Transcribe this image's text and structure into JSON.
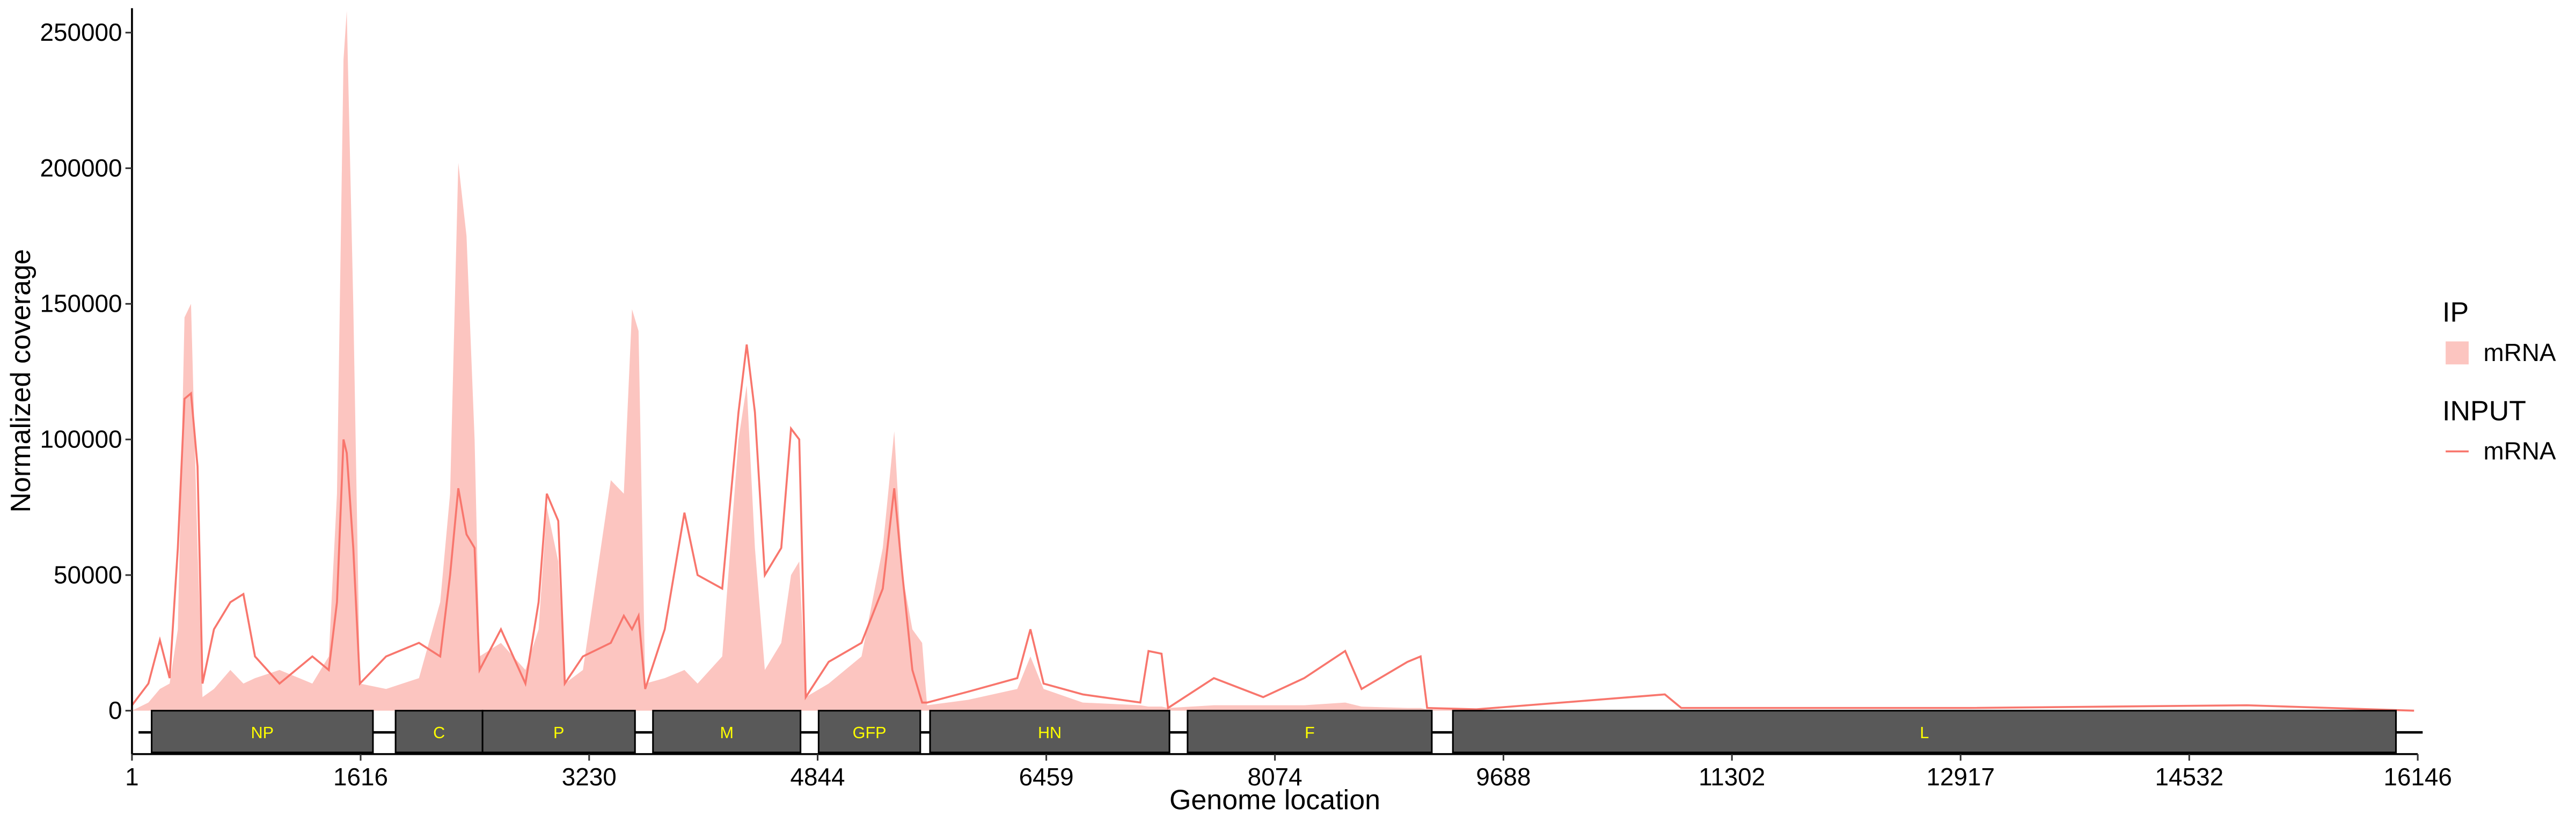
{
  "chart_data": {
    "type": "area",
    "x_label": "Genome location",
    "y_label": "Normalized coverage",
    "xlim": [
      1,
      16146
    ],
    "xticks": [
      1,
      1616,
      3230,
      4844,
      6459,
      8074,
      9688,
      11302,
      12917,
      14532,
      16146
    ],
    "ylim": [
      -16000,
      259000
    ],
    "yticks": [
      0,
      50000,
      100000,
      150000,
      200000,
      250000
    ],
    "x": [
      1,
      117,
      198,
      267,
      325,
      372,
      418,
      464,
      499,
      580,
      696,
      788,
      870,
      1043,
      1275,
      1391,
      1449,
      1495,
      1518,
      1564,
      1611,
      1796,
      2028,
      2178,
      2248,
      2306,
      2364,
      2421,
      2456,
      2607,
      2780,
      2873,
      2931,
      3012,
      3058,
      3186,
      3383,
      3475,
      3533,
      3579,
      3626,
      3764,
      3903,
      3996,
      4170,
      4285,
      4343,
      4401,
      4471,
      4587,
      4656,
      4714,
      4760,
      4922,
      5154,
      5304,
      5385,
      5443,
      5513,
      5582,
      5617,
      5907,
      6254,
      6347,
      6440,
      6717,
      7123,
      7181,
      7273,
      7319,
      7643,
      7991,
      8281,
      8570,
      8686,
      9010,
      9103,
      9149,
      9497,
      10828,
      10944,
      12970,
      14939,
      16120
    ],
    "series": [
      {
        "group": "IP",
        "name": "mRNA",
        "kind": "area",
        "color": "#fcc5c0",
        "values": [
          0,
          3000,
          8000,
          10000,
          30000,
          145000,
          150000,
          60000,
          5000,
          8000,
          15000,
          10000,
          12000,
          15000,
          10000,
          20000,
          80000,
          240000,
          258000,
          150000,
          10000,
          8000,
          12000,
          40000,
          80000,
          202000,
          175000,
          100000,
          20000,
          25000,
          15000,
          30000,
          75000,
          55000,
          10000,
          15000,
          85000,
          80000,
          148000,
          140000,
          10000,
          12000,
          15000,
          10000,
          20000,
          100000,
          120000,
          60000,
          15000,
          25000,
          50000,
          55000,
          5000,
          10000,
          20000,
          60000,
          103000,
          50000,
          30000,
          25000,
          2000,
          4000,
          8000,
          20000,
          8000,
          3000,
          2000,
          1500,
          1500,
          1000,
          2000,
          2000,
          2000,
          3000,
          1500,
          1000,
          1000,
          500,
          300,
          300,
          300,
          300,
          300,
          0
        ]
      },
      {
        "group": "INPUT",
        "name": "mRNA",
        "kind": "line",
        "color": "#f8766d",
        "values": [
          2000,
          10000,
          26000,
          12000,
          60000,
          115000,
          117000,
          90000,
          10000,
          30000,
          40000,
          43000,
          20000,
          10000,
          20000,
          15000,
          40000,
          100000,
          95000,
          60000,
          10000,
          20000,
          25000,
          20000,
          50000,
          82000,
          65000,
          60000,
          15000,
          30000,
          10000,
          40000,
          80000,
          70000,
          10000,
          20000,
          25000,
          35000,
          30000,
          35000,
          8000,
          30000,
          73000,
          50000,
          45000,
          110000,
          135000,
          110000,
          50000,
          60000,
          104000,
          100000,
          5000,
          18000,
          25000,
          45000,
          82000,
          50000,
          15000,
          3000,
          3000,
          7000,
          12000,
          30000,
          10000,
          6000,
          3000,
          22000,
          21000,
          1000,
          12000,
          5000,
          12000,
          22000,
          8000,
          18000,
          20000,
          1000,
          500,
          6000,
          1000,
          1000,
          2000,
          0
        ]
      }
    ],
    "genes": [
      {
        "name": "NP",
        "start": 140,
        "end": 1703
      },
      {
        "name": "C",
        "start": 1863,
        "end": 2477
      },
      {
        "name": "P",
        "start": 2477,
        "end": 3554
      },
      {
        "name": "M",
        "start": 3681,
        "end": 4723
      },
      {
        "name": "GFP",
        "start": 4851,
        "end": 5569
      },
      {
        "name": "HN",
        "start": 5638,
        "end": 7329
      },
      {
        "name": "F",
        "start": 7457,
        "end": 9182
      },
      {
        "name": "L",
        "start": 9331,
        "end": 15992
      }
    ]
  }
}
